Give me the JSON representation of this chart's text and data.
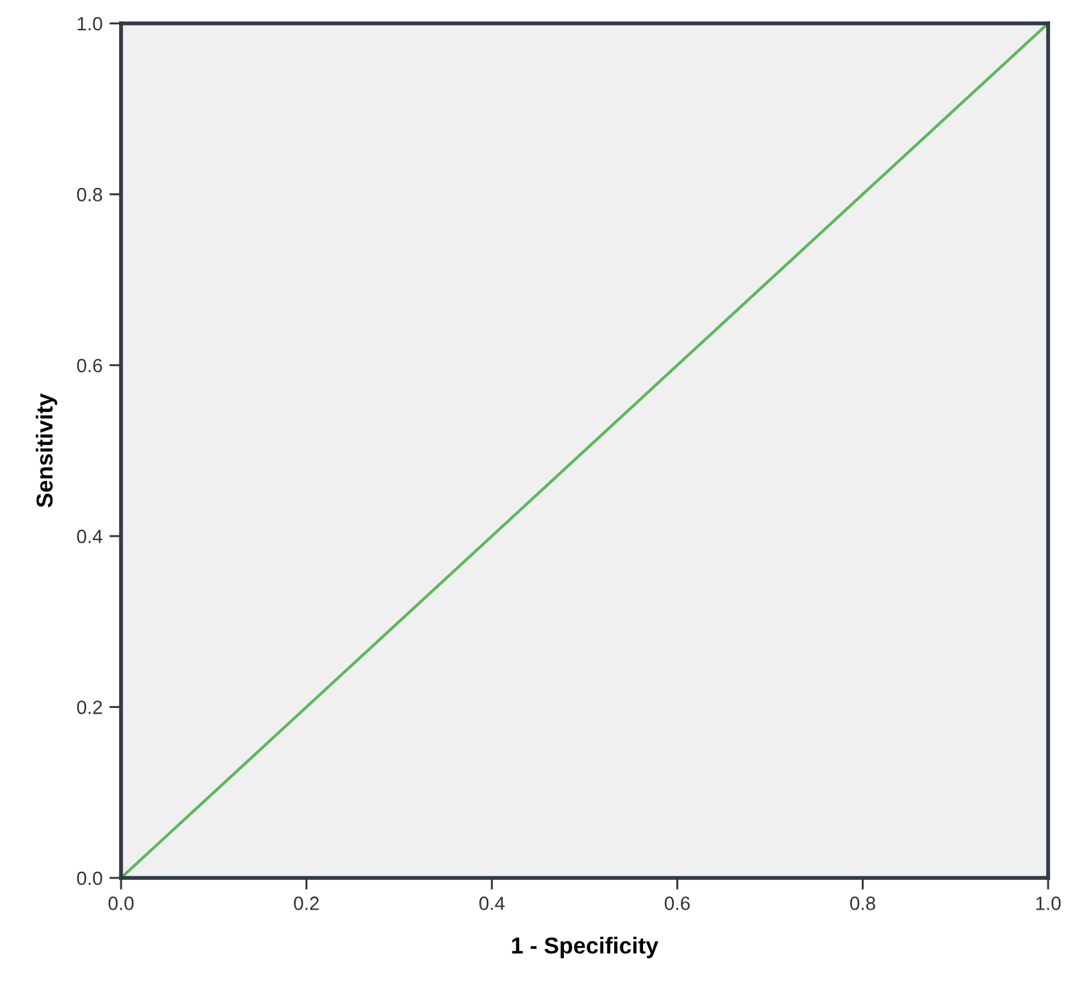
{
  "chart_data": {
    "type": "line",
    "xlabel": "1 - Specificity",
    "ylabel": "Sensitivity",
    "x": [
      0,
      1
    ],
    "series": [
      {
        "color": "#5cb85c",
        "values": [
          0,
          1
        ]
      }
    ],
    "xlim": [
      0,
      1
    ],
    "ylim": [
      0,
      1
    ],
    "xticks": [
      {
        "value": 0,
        "label": "0.0"
      },
      0.2,
      0.4,
      0.6,
      0.8,
      {
        "value": 1,
        "label": "1.0"
      }
    ],
    "yticks": [
      {
        "value": 0,
        "label": "0.0"
      },
      0.2,
      0.4,
      0.6,
      0.8,
      {
        "value": 1,
        "label": "1.0"
      }
    ],
    "grid": false,
    "marker": "none",
    "line_style": "solid"
  }
}
